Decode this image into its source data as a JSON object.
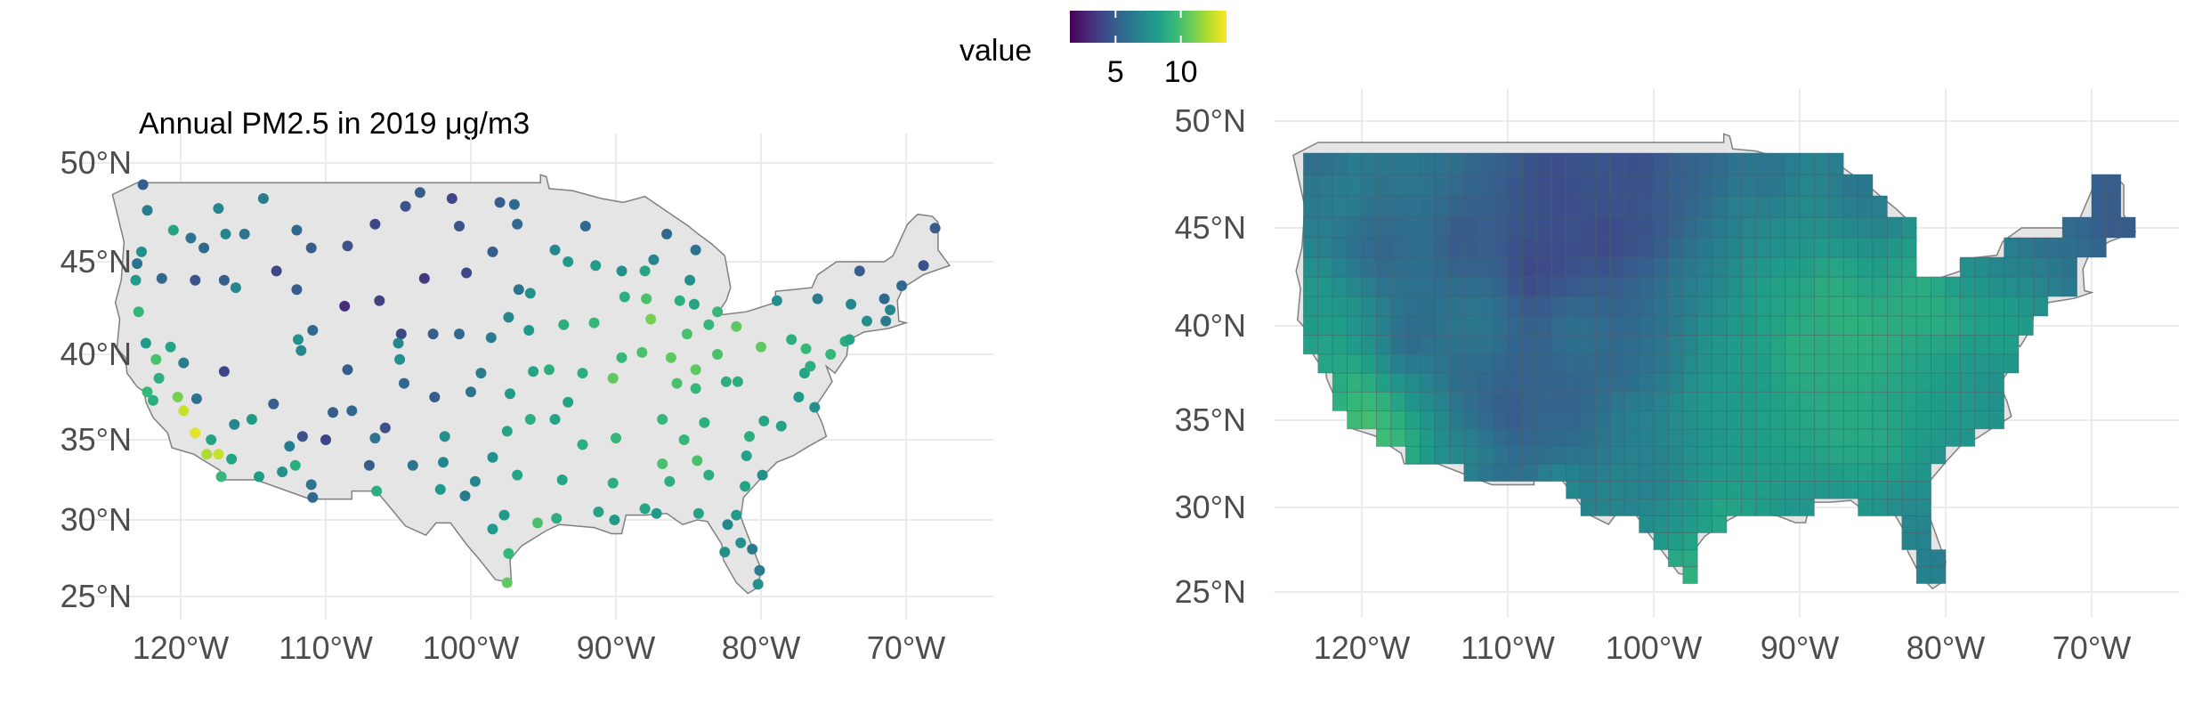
{
  "colors": {
    "viridis": [
      "#440154",
      "#482878",
      "#3e4a89",
      "#31688e",
      "#26828e",
      "#1f9e89",
      "#35b779",
      "#6ece58",
      "#b5de2b",
      "#fde725"
    ],
    "land": "#e5e5e5",
    "border": "#808080",
    "grid": "#ebebeb"
  },
  "legend": {
    "title": "value",
    "min": 1.5,
    "max": 13.5,
    "ticks": [
      {
        "value": 5,
        "label": "5"
      },
      {
        "value": 10,
        "label": "10"
      }
    ]
  },
  "left_panel": {
    "title": "Annual PM2.5 in 2019 μg/m3",
    "x_ticks": [
      {
        "lon": -120,
        "label": "120°W"
      },
      {
        "lon": -110,
        "label": "110°W"
      },
      {
        "lon": -100,
        "label": "100°W"
      },
      {
        "lon": -90,
        "label": "90°W"
      },
      {
        "lon": -80,
        "label": "80°W"
      },
      {
        "lon": -70,
        "label": "70°W"
      }
    ],
    "y_ticks": [
      {
        "lat": 50,
        "label": "50°N"
      },
      {
        "lat": 45,
        "label": "45°N"
      },
      {
        "lat": 40,
        "label": "40°N"
      },
      {
        "lat": 35,
        "label": "35°N"
      },
      {
        "lat": 30,
        "label": "30°N"
      },
      {
        "lat": 25,
        "label": "25°N"
      }
    ]
  },
  "right_panel": {
    "x_ticks": [
      {
        "lon": -120,
        "label": "120°W"
      },
      {
        "lon": -110,
        "label": "110°W"
      },
      {
        "lon": -100,
        "label": "100°W"
      },
      {
        "lon": -90,
        "label": "90°W"
      },
      {
        "lon": -80,
        "label": "80°W"
      },
      {
        "lon": -70,
        "label": "70°W"
      }
    ],
    "y_ticks": [
      {
        "lat": 50,
        "label": "50°N"
      },
      {
        "lat": 45,
        "label": "45°N"
      },
      {
        "lat": 40,
        "label": "40°N"
      },
      {
        "lat": 35,
        "label": "35°N"
      },
      {
        "lat": 30,
        "label": "30°N"
      },
      {
        "lat": 25,
        "label": "25°N"
      }
    ]
  },
  "us_outline": [
    [
      -124.7,
      48.4
    ],
    [
      -123.0,
      49.0
    ],
    [
      -95.2,
      49.0
    ],
    [
      -95.2,
      49.4
    ],
    [
      -94.8,
      49.3
    ],
    [
      -94.6,
      48.7
    ],
    [
      -93.0,
      48.6
    ],
    [
      -91.0,
      48.2
    ],
    [
      -89.5,
      48.0
    ],
    [
      -88.0,
      48.3
    ],
    [
      -85.0,
      46.8
    ],
    [
      -84.5,
      46.5
    ],
    [
      -83.4,
      45.9
    ],
    [
      -82.5,
      45.3
    ],
    [
      -82.1,
      43.6
    ],
    [
      -82.4,
      42.9
    ],
    [
      -83.1,
      42.1
    ],
    [
      -81.0,
      42.3
    ],
    [
      -79.0,
      42.8
    ],
    [
      -79.0,
      43.4
    ],
    [
      -76.5,
      43.6
    ],
    [
      -76.1,
      44.3
    ],
    [
      -74.8,
      45.0
    ],
    [
      -71.5,
      45.0
    ],
    [
      -70.9,
      45.3
    ],
    [
      -69.9,
      46.9
    ],
    [
      -69.2,
      47.4
    ],
    [
      -68.2,
      47.3
    ],
    [
      -67.8,
      47.0
    ],
    [
      -67.8,
      45.6
    ],
    [
      -67.0,
      44.8
    ],
    [
      -68.8,
      44.3
    ],
    [
      -70.2,
      43.6
    ],
    [
      -70.6,
      42.9
    ],
    [
      -70.5,
      41.8
    ],
    [
      -70.0,
      41.7
    ],
    [
      -71.2,
      41.4
    ],
    [
      -72.9,
      41.2
    ],
    [
      -73.9,
      40.8
    ],
    [
      -74.0,
      40.5
    ],
    [
      -74.1,
      39.9
    ],
    [
      -74.9,
      38.9
    ],
    [
      -75.5,
      39.3
    ],
    [
      -75.1,
      38.4
    ],
    [
      -75.8,
      37.5
    ],
    [
      -76.3,
      36.9
    ],
    [
      -75.8,
      36.0
    ],
    [
      -75.5,
      35.2
    ],
    [
      -76.7,
      34.6
    ],
    [
      -77.8,
      34.0
    ],
    [
      -78.9,
      33.6
    ],
    [
      -79.9,
      32.7
    ],
    [
      -81.2,
      31.4
    ],
    [
      -81.4,
      30.2
    ],
    [
      -81.0,
      29.2
    ],
    [
      -80.5,
      28.0
    ],
    [
      -80.0,
      26.8
    ],
    [
      -80.2,
      25.6
    ],
    [
      -80.9,
      25.2
    ],
    [
      -81.7,
      25.9
    ],
    [
      -82.6,
      27.4
    ],
    [
      -82.7,
      28.4
    ],
    [
      -83.7,
      29.9
    ],
    [
      -84.4,
      30.0
    ],
    [
      -85.4,
      29.7
    ],
    [
      -86.5,
      30.4
    ],
    [
      -88.0,
      30.3
    ],
    [
      -89.3,
      30.3
    ],
    [
      -89.6,
      29.1
    ],
    [
      -90.3,
      29.1
    ],
    [
      -91.5,
      29.5
    ],
    [
      -92.7,
      29.6
    ],
    [
      -93.9,
      29.7
    ],
    [
      -94.8,
      29.3
    ],
    [
      -96.5,
      28.3
    ],
    [
      -97.3,
      27.4
    ],
    [
      -97.2,
      25.9
    ],
    [
      -98.3,
      26.1
    ],
    [
      -99.4,
      27.4
    ],
    [
      -100.3,
      28.4
    ],
    [
      -101.4,
      29.8
    ],
    [
      -102.4,
      29.8
    ],
    [
      -103.1,
      29.0
    ],
    [
      -104.5,
      29.6
    ],
    [
      -106.5,
      31.8
    ],
    [
      -108.2,
      31.8
    ],
    [
      -108.2,
      31.3
    ],
    [
      -111.1,
      31.3
    ],
    [
      -114.8,
      32.5
    ],
    [
      -117.1,
      32.5
    ],
    [
      -117.3,
      33.1
    ],
    [
      -118.4,
      33.7
    ],
    [
      -119.1,
      34.1
    ],
    [
      -120.6,
      34.5
    ],
    [
      -120.9,
      35.4
    ],
    [
      -121.9,
      36.3
    ],
    [
      -122.4,
      37.2
    ],
    [
      -122.5,
      37.8
    ],
    [
      -123.0,
      38.1
    ],
    [
      -123.7,
      38.9
    ],
    [
      -123.8,
      39.8
    ],
    [
      -124.4,
      40.3
    ],
    [
      -124.2,
      41.9
    ],
    [
      -124.5,
      42.8
    ],
    [
      -124.1,
      44.0
    ],
    [
      -123.9,
      46.0
    ],
    [
      -124.2,
      46.9
    ],
    [
      -124.7,
      48.4
    ]
  ],
  "grid_cells": {
    "lon_range": [
      -124,
      -67
    ],
    "lat_range": [
      24.5,
      49.5
    ],
    "step": 1
  },
  "stations": [
    [
      -122.3,
      47.6,
      6.5
    ],
    [
      -122.6,
      48.9,
      5.0
    ],
    [
      -117.4,
      47.7,
      7.0
    ],
    [
      -120.5,
      46.6,
      8.5
    ],
    [
      -119.3,
      46.2,
      6.0
    ],
    [
      -122.7,
      45.5,
      7.5
    ],
    [
      -123.0,
      44.9,
      6.0
    ],
    [
      -123.1,
      44.0,
      8.0
    ],
    [
      -121.3,
      44.1,
      5.5
    ],
    [
      -122.9,
      42.3,
      9.5
    ],
    [
      -118.4,
      45.7,
      5.5
    ],
    [
      -116.2,
      43.6,
      7.0
    ],
    [
      -112.0,
      43.5,
      5.0
    ],
    [
      -114.3,
      48.2,
      6.5
    ],
    [
      -111.0,
      45.7,
      5.0
    ],
    [
      -112.0,
      46.6,
      5.5
    ],
    [
      -108.5,
      45.8,
      4.5
    ],
    [
      -106.6,
      46.9,
      4.0
    ],
    [
      -104.5,
      47.8,
      4.5
    ],
    [
      -101.3,
      48.2,
      4.0
    ],
    [
      -100.8,
      46.8,
      4.5
    ],
    [
      -96.8,
      46.9,
      5.5
    ],
    [
      -98.5,
      45.5,
      5.0
    ],
    [
      -100.3,
      44.4,
      4.0
    ],
    [
      -103.2,
      44.1,
      3.5
    ],
    [
      -96.7,
      43.5,
      6.0
    ],
    [
      -104.8,
      41.1,
      4.0
    ],
    [
      -106.3,
      42.9,
      3.8
    ],
    [
      -108.7,
      42.6,
      3.0
    ],
    [
      -110.9,
      41.3,
      5.5
    ],
    [
      -111.9,
      40.8,
      7.5
    ],
    [
      -111.7,
      40.2,
      7.0
    ],
    [
      -113.6,
      37.1,
      5.0
    ],
    [
      -115.1,
      36.2,
      8.0
    ],
    [
      -119.8,
      39.5,
      6.5
    ],
    [
      -117.0,
      39.0,
      4.0
    ],
    [
      -121.5,
      38.6,
      9.0
    ],
    [
      -122.3,
      37.8,
      9.5
    ],
    [
      -121.9,
      37.3,
      9.0
    ],
    [
      -119.8,
      36.7,
      12.5
    ],
    [
      -119.0,
      35.4,
      13.0
    ],
    [
      -118.2,
      34.1,
      12.0
    ],
    [
      -117.4,
      34.1,
      12.5
    ],
    [
      -117.2,
      32.7,
      9.5
    ],
    [
      -116.5,
      33.8,
      8.5
    ],
    [
      -112.1,
      33.4,
      9.0
    ],
    [
      -111.0,
      32.2,
      6.0
    ],
    [
      -110.9,
      31.4,
      5.5
    ],
    [
      -106.6,
      35.1,
      6.0
    ],
    [
      -105.9,
      35.7,
      4.5
    ],
    [
      -106.5,
      31.8,
      9.0
    ],
    [
      -104.9,
      39.7,
      7.5
    ],
    [
      -105.0,
      40.6,
      7.0
    ],
    [
      -104.6,
      38.3,
      5.5
    ],
    [
      -108.5,
      39.1,
      5.0
    ],
    [
      -101.8,
      35.2,
      7.5
    ],
    [
      -101.9,
      33.6,
      7.0
    ],
    [
      -97.5,
      35.5,
      8.5
    ],
    [
      -95.9,
      36.2,
      9.0
    ],
    [
      -97.3,
      37.7,
      8.0
    ],
    [
      -95.7,
      39.0,
      8.5
    ],
    [
      -94.6,
      39.1,
      9.0
    ],
    [
      -96.0,
      41.3,
      8.0
    ],
    [
      -98.6,
      40.9,
      6.5
    ],
    [
      -93.6,
      41.6,
      9.0
    ],
    [
      -91.5,
      41.7,
      9.5
    ],
    [
      -93.3,
      45.0,
      8.0
    ],
    [
      -92.1,
      46.8,
      5.5
    ],
    [
      -89.4,
      43.1,
      9.0
    ],
    [
      -87.9,
      43.0,
      10.0
    ],
    [
      -87.6,
      41.9,
      11.0
    ],
    [
      -88.2,
      40.1,
      10.0
    ],
    [
      -89.6,
      39.8,
      9.5
    ],
    [
      -90.2,
      38.6,
      10.5
    ],
    [
      -92.3,
      38.9,
      9.0
    ],
    [
      -93.3,
      37.2,
      8.5
    ],
    [
      -86.2,
      39.8,
      10.5
    ],
    [
      -85.1,
      41.1,
      10.0
    ],
    [
      -84.5,
      39.1,
      10.5
    ],
    [
      -83.0,
      40.0,
      10.0
    ],
    [
      -81.7,
      41.5,
      10.5
    ],
    [
      -83.6,
      41.6,
      9.5
    ],
    [
      -83.0,
      42.3,
      9.5
    ],
    [
      -85.6,
      42.9,
      9.0
    ],
    [
      -84.6,
      42.7,
      8.5
    ],
    [
      -80.0,
      40.4,
      10.5
    ],
    [
      -77.9,
      40.8,
      9.0
    ],
    [
      -76.9,
      40.3,
      9.5
    ],
    [
      -75.2,
      40.0,
      9.5
    ],
    [
      -74.2,
      40.7,
      9.0
    ],
    [
      -73.9,
      40.8,
      8.5
    ],
    [
      -73.8,
      42.7,
      7.0
    ],
    [
      -76.1,
      43.0,
      6.5
    ],
    [
      -78.9,
      42.9,
      7.5
    ],
    [
      -71.1,
      42.4,
      7.0
    ],
    [
      -72.7,
      41.8,
      7.5
    ],
    [
      -71.4,
      41.8,
      6.5
    ],
    [
      -70.3,
      43.7,
      5.5
    ],
    [
      -71.5,
      43.0,
      5.5
    ],
    [
      -73.2,
      44.5,
      5.0
    ],
    [
      -68.8,
      44.8,
      4.5
    ],
    [
      -68.0,
      46.7,
      5.0
    ],
    [
      -77.0,
      38.9,
      8.5
    ],
    [
      -76.6,
      39.3,
      9.0
    ],
    [
      -77.4,
      37.5,
      8.0
    ],
    [
      -76.3,
      36.9,
      7.5
    ],
    [
      -78.6,
      35.8,
      8.5
    ],
    [
      -80.8,
      35.2,
      9.0
    ],
    [
      -79.8,
      36.1,
      8.5
    ],
    [
      -81.0,
      34.0,
      8.5
    ],
    [
      -79.9,
      32.8,
      7.5
    ],
    [
      -84.4,
      33.7,
      10.0
    ],
    [
      -83.6,
      32.8,
      9.0
    ],
    [
      -81.1,
      32.1,
      8.5
    ],
    [
      -86.8,
      33.5,
      10.0
    ],
    [
      -86.3,
      32.4,
      9.0
    ],
    [
      -88.0,
      30.7,
      8.5
    ],
    [
      -90.2,
      32.3,
      9.0
    ],
    [
      -90.1,
      30.0,
      8.0
    ],
    [
      -91.2,
      30.5,
      8.5
    ],
    [
      -93.7,
      32.5,
      8.5
    ],
    [
      -92.3,
      34.7,
      9.0
    ],
    [
      -94.2,
      36.2,
      8.5
    ],
    [
      -90.0,
      35.1,
      9.5
    ],
    [
      -86.8,
      36.2,
      9.5
    ],
    [
      -83.9,
      36.0,
      9.0
    ],
    [
      -85.3,
      35.0,
      9.5
    ],
    [
      -85.8,
      38.3,
      10.0
    ],
    [
      -84.5,
      38.0,
      9.5
    ],
    [
      -82.4,
      38.4,
      9.0
    ],
    [
      -81.6,
      38.4,
      9.0
    ],
    [
      -95.4,
      29.8,
      10.0
    ],
    [
      -96.8,
      32.8,
      8.5
    ],
    [
      -97.7,
      30.3,
      8.0
    ],
    [
      -98.5,
      29.4,
      8.0
    ],
    [
      -97.4,
      27.8,
      9.5
    ],
    [
      -97.5,
      25.9,
      10.5
    ],
    [
      -94.1,
      30.1,
      9.0
    ],
    [
      -82.5,
      27.9,
      7.5
    ],
    [
      -81.4,
      28.5,
      7.5
    ],
    [
      -80.2,
      25.8,
      7.5
    ],
    [
      -80.1,
      26.7,
      6.5
    ],
    [
      -81.7,
      30.3,
      8.0
    ],
    [
      -84.3,
      30.4,
      8.5
    ],
    [
      -87.2,
      30.4,
      8.0
    ],
    [
      -82.3,
      29.7,
      7.0
    ],
    [
      -80.6,
      28.1,
      6.5
    ],
    [
      -111.6,
      35.2,
      4.5
    ],
    [
      -109.5,
      36.6,
      5.0
    ],
    [
      -108.2,
      36.7,
      5.5
    ],
    [
      -113.4,
      44.5,
      4.0
    ],
    [
      -115.6,
      46.4,
      6.0
    ],
    [
      -116.9,
      46.4,
      7.0
    ],
    [
      -117.0,
      44.0,
      5.0
    ],
    [
      -119.0,
      44.0,
      4.5
    ],
    [
      -120.7,
      40.4,
      8.5
    ],
    [
      -122.4,
      40.6,
      8.0
    ],
    [
      -121.7,
      39.7,
      10.0
    ],
    [
      -120.2,
      37.5,
      11.0
    ],
    [
      -118.9,
      37.4,
      6.0
    ],
    [
      -117.9,
      35.0,
      8.5
    ],
    [
      -116.3,
      35.9,
      7.0
    ],
    [
      -103.5,
      48.5,
      5.0
    ],
    [
      -98.0,
      48.0,
      5.0
    ],
    [
      -97.0,
      47.9,
      5.5
    ],
    [
      -94.2,
      45.6,
      7.0
    ],
    [
      -91.4,
      44.8,
      8.0
    ],
    [
      -89.6,
      44.5,
      7.5
    ],
    [
      -88.0,
      44.5,
      8.5
    ],
    [
      -86.5,
      46.4,
      5.5
    ],
    [
      -84.5,
      45.6,
      6.0
    ],
    [
      -87.4,
      45.1,
      7.0
    ],
    [
      -84.9,
      44.0,
      7.5
    ],
    [
      -95.9,
      43.3,
      7.5
    ],
    [
      -97.4,
      42.0,
      7.0
    ],
    [
      -102.6,
      41.1,
      5.0
    ],
    [
      -100.8,
      41.1,
      5.5
    ],
    [
      -99.3,
      38.9,
      6.5
    ],
    [
      -100.0,
      37.8,
      6.0
    ],
    [
      -102.5,
      37.5,
      5.0
    ],
    [
      -98.5,
      33.9,
      7.5
    ],
    [
      -99.7,
      32.4,
      7.0
    ],
    [
      -102.1,
      31.9,
      8.0
    ],
    [
      -100.4,
      31.5,
      6.5
    ],
    [
      -104.0,
      33.4,
      6.0
    ],
    [
      -107.0,
      33.4,
      5.0
    ],
    [
      -110.0,
      35.0,
      4.0
    ],
    [
      -112.5,
      34.6,
      6.5
    ],
    [
      -113.0,
      33.0,
      7.5
    ],
    [
      -114.6,
      32.7,
      8.0
    ]
  ]
}
